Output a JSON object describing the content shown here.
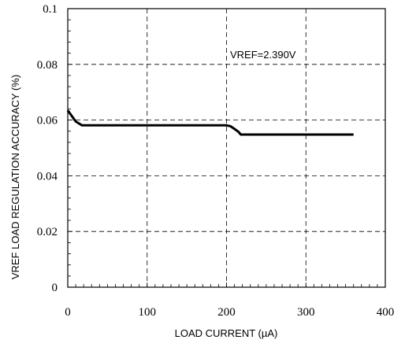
{
  "chart_data": {
    "type": "line",
    "title": "",
    "xlabel": "LOAD CURRENT (µA)",
    "ylabel": "VREF LOAD REGULATION ACCURACY (%)",
    "xlim": [
      0,
      400
    ],
    "ylim": [
      0,
      0.1
    ],
    "x_ticks": [
      0,
      100,
      200,
      300,
      400
    ],
    "y_ticks": [
      0,
      0.02,
      0.04,
      0.06,
      0.08,
      0.1
    ],
    "x_tick_labels": [
      "0",
      "100",
      "200",
      "300",
      "400"
    ],
    "y_tick_labels": [
      "0",
      "0.02",
      "0.04",
      "0.06",
      "0.08",
      "0.1"
    ],
    "grid": "dashed",
    "annotation": "VREF=2.390V",
    "series": [
      {
        "color": "#000000",
        "x": [
          0,
          5,
          10,
          18,
          50,
          100,
          150,
          200,
          205,
          210,
          215,
          218,
          250,
          300,
          360
        ],
        "y": [
          0.0635,
          0.0615,
          0.0595,
          0.0581,
          0.0581,
          0.0581,
          0.0581,
          0.0581,
          0.0578,
          0.0568,
          0.0558,
          0.0548,
          0.0548,
          0.0548,
          0.0548
        ]
      }
    ]
  }
}
